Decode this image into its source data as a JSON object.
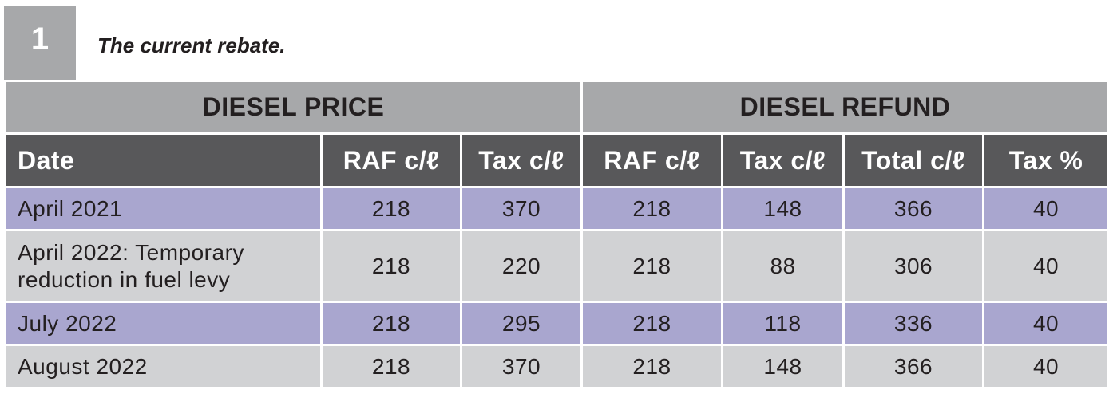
{
  "figure": {
    "number": "1",
    "caption": "The current rebate."
  },
  "table": {
    "group_headers": [
      "DIESEL PRICE",
      "DIESEL REFUND"
    ],
    "columns": [
      "Date",
      "RAF c/ℓ",
      "Tax c/ℓ",
      "RAF c/ℓ",
      "Tax c/ℓ",
      "Total c/ℓ",
      "Tax %"
    ],
    "rows": [
      {
        "date": "April 2021",
        "price_raf": "218",
        "price_tax": "370",
        "refund_raf": "218",
        "refund_tax": "148",
        "total": "366",
        "tax_pct": "40"
      },
      {
        "date": "April 2022: Temporary reduction in fuel levy",
        "price_raf": "218",
        "price_tax": "220",
        "refund_raf": "218",
        "refund_tax": "88",
        "total": "306",
        "tax_pct": "40"
      },
      {
        "date": "July 2022",
        "price_raf": "218",
        "price_tax": "295",
        "refund_raf": "218",
        "refund_tax": "118",
        "total": "336",
        "tax_pct": "40"
      },
      {
        "date": "August 2022",
        "price_raf": "218",
        "price_tax": "370",
        "refund_raf": "218",
        "refund_tax": "148",
        "total": "366",
        "tax_pct": "40"
      }
    ]
  },
  "colors": {
    "group_header_bg": "#a7a8aa",
    "column_header_bg": "#58585a",
    "row_purple": "#a9a6cf",
    "row_grey": "#d1d2d4"
  }
}
